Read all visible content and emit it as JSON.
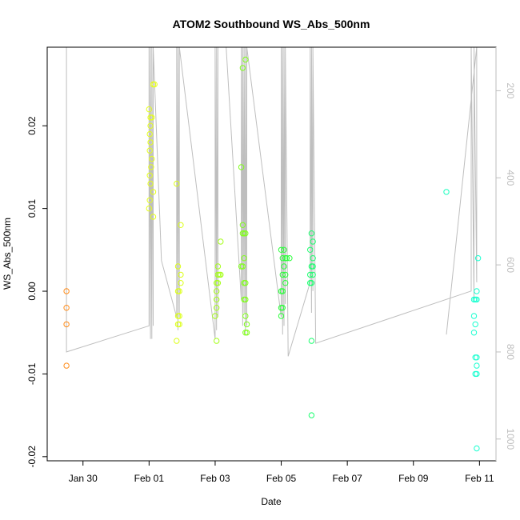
{
  "chart_data": {
    "type": "scatter",
    "title": "ATOM2 Southbound WS_Abs_500nm",
    "xlabel": "Date",
    "ylabel": "WS_Abs_500nm",
    "x_unit": "days",
    "xlim": [
      "2018-01-28T22:00",
      "2018-02-11T12:00"
    ],
    "ylim": [
      -0.0205,
      0.0295
    ],
    "x_ticks": [
      {
        "label": "Jan 30",
        "value": "2018-01-30"
      },
      {
        "label": "Feb 01",
        "value": "2018-02-01"
      },
      {
        "label": "Feb 03",
        "value": "2018-02-03"
      },
      {
        "label": "Feb 05",
        "value": "2018-02-05"
      },
      {
        "label": "Feb 07",
        "value": "2018-02-07"
      },
      {
        "label": "Feb 09",
        "value": "2018-02-09"
      },
      {
        "label": "Feb 11",
        "value": "2018-02-11"
      }
    ],
    "y_ticks": [
      {
        "label": "-0.02",
        "value": -0.02
      },
      {
        "label": "-0.01",
        "value": -0.01
      },
      {
        "label": "0.00",
        "value": 0.0
      },
      {
        "label": "0.01",
        "value": 0.01
      },
      {
        "label": "0.02",
        "value": 0.02
      }
    ],
    "secondary_axis": {
      "position": "right",
      "color": "#bebebe",
      "reversed": true,
      "range": [
        100,
        1050
      ],
      "ticks": [
        {
          "label": "200",
          "value": 200
        },
        {
          "label": "400",
          "value": 400
        },
        {
          "label": "600",
          "value": 600
        },
        {
          "label": "800",
          "value": 800
        },
        {
          "label": "1000",
          "value": 1000
        }
      ]
    },
    "grid": false,
    "points": [
      {
        "x": "2018-01-29T12:00",
        "y": 0.0,
        "color": "#ff8c1a"
      },
      {
        "x": "2018-01-29T12:00",
        "y": -0.002,
        "color": "#ff8c1a"
      },
      {
        "x": "2018-01-29T12:00",
        "y": -0.004,
        "color": "#ff8c1a"
      },
      {
        "x": "2018-01-29T12:00",
        "y": -0.009,
        "color": "#ff8c1a"
      },
      {
        "x": "2018-02-01T00:00",
        "y": 0.022,
        "color": "#e6ff1a"
      },
      {
        "x": "2018-02-01T01:00",
        "y": 0.021,
        "color": "#e6ff1a"
      },
      {
        "x": "2018-02-01T02:00",
        "y": 0.021,
        "color": "#e6ff1a"
      },
      {
        "x": "2018-02-01T01:00",
        "y": 0.02,
        "color": "#e6ff1a"
      },
      {
        "x": "2018-02-01T00:30",
        "y": 0.019,
        "color": "#e6ff1a"
      },
      {
        "x": "2018-02-01T01:00",
        "y": 0.018,
        "color": "#e6ff1a"
      },
      {
        "x": "2018-02-01T00:30",
        "y": 0.017,
        "color": "#e6ff1a"
      },
      {
        "x": "2018-02-01T02:00",
        "y": 0.016,
        "color": "#e6ff1a"
      },
      {
        "x": "2018-02-01T01:30",
        "y": 0.015,
        "color": "#e6ff1a"
      },
      {
        "x": "2018-02-01T00:30",
        "y": 0.014,
        "color": "#e6ff1a"
      },
      {
        "x": "2018-02-01T01:00",
        "y": 0.013,
        "color": "#e6ff1a"
      },
      {
        "x": "2018-02-01T03:00",
        "y": 0.012,
        "color": "#e6ff1a"
      },
      {
        "x": "2018-02-01T00:30",
        "y": 0.011,
        "color": "#e6ff1a"
      },
      {
        "x": "2018-02-01T00:00",
        "y": 0.01,
        "color": "#e6ff1a"
      },
      {
        "x": "2018-02-01T03:00",
        "y": 0.009,
        "color": "#e6ff1a"
      },
      {
        "x": "2018-02-01T03:00",
        "y": 0.025,
        "color": "#e6ff1a"
      },
      {
        "x": "2018-02-01T04:00",
        "y": 0.025,
        "color": "#e6ff1a"
      },
      {
        "x": "2018-02-01T20:00",
        "y": 0.013,
        "color": "#dcff1a"
      },
      {
        "x": "2018-02-01T23:00",
        "y": 0.008,
        "color": "#dcff1a"
      },
      {
        "x": "2018-02-01T21:00",
        "y": 0.003,
        "color": "#dcff1a"
      },
      {
        "x": "2018-02-01T23:00",
        "y": 0.002,
        "color": "#dcff1a"
      },
      {
        "x": "2018-02-01T23:00",
        "y": 0.001,
        "color": "#dcff1a"
      },
      {
        "x": "2018-02-01T21:00",
        "y": 0.0,
        "color": "#dcff1a"
      },
      {
        "x": "2018-02-01T22:00",
        "y": 0.0,
        "color": "#dcff1a"
      },
      {
        "x": "2018-02-01T21:00",
        "y": -0.003,
        "color": "#dcff1a"
      },
      {
        "x": "2018-02-01T22:00",
        "y": -0.003,
        "color": "#dcff1a"
      },
      {
        "x": "2018-02-01T21:00",
        "y": -0.004,
        "color": "#dcff1a"
      },
      {
        "x": "2018-02-01T22:00",
        "y": -0.004,
        "color": "#dcff1a"
      },
      {
        "x": "2018-02-01T20:00",
        "y": -0.006,
        "color": "#dcff1a"
      },
      {
        "x": "2018-02-03T04:00",
        "y": 0.006,
        "color": "#a6ff1a"
      },
      {
        "x": "2018-02-03T02:00",
        "y": 0.003,
        "color": "#a6ff1a"
      },
      {
        "x": "2018-02-03T02:00",
        "y": 0.002,
        "color": "#a6ff1a"
      },
      {
        "x": "2018-02-03T03:00",
        "y": 0.002,
        "color": "#a6ff1a"
      },
      {
        "x": "2018-02-03T04:00",
        "y": 0.002,
        "color": "#a6ff1a"
      },
      {
        "x": "2018-02-03T01:00",
        "y": 0.001,
        "color": "#a6ff1a"
      },
      {
        "x": "2018-02-03T02:00",
        "y": 0.001,
        "color": "#a6ff1a"
      },
      {
        "x": "2018-02-03T01:00",
        "y": 0.0,
        "color": "#a6ff1a"
      },
      {
        "x": "2018-02-03T01:00",
        "y": -0.001,
        "color": "#a6ff1a"
      },
      {
        "x": "2018-02-03T01:00",
        "y": -0.002,
        "color": "#a6ff1a"
      },
      {
        "x": "2018-02-03T00:00",
        "y": -0.003,
        "color": "#a6ff1a"
      },
      {
        "x": "2018-02-03T01:00",
        "y": -0.006,
        "color": "#a6ff1a"
      },
      {
        "x": "2018-02-03T20:00",
        "y": 0.027,
        "color": "#80ff1a"
      },
      {
        "x": "2018-02-03T22:00",
        "y": 0.028,
        "color": "#80ff1a"
      },
      {
        "x": "2018-02-03T19:00",
        "y": 0.015,
        "color": "#80ff1a"
      },
      {
        "x": "2018-02-03T20:00",
        "y": 0.008,
        "color": "#80ff1a"
      },
      {
        "x": "2018-02-03T20:00",
        "y": 0.007,
        "color": "#80ff1a"
      },
      {
        "x": "2018-02-03T21:00",
        "y": 0.007,
        "color": "#80ff1a"
      },
      {
        "x": "2018-02-03T22:00",
        "y": 0.007,
        "color": "#80ff1a"
      },
      {
        "x": "2018-02-03T21:00",
        "y": 0.004,
        "color": "#80ff1a"
      },
      {
        "x": "2018-02-03T19:00",
        "y": 0.003,
        "color": "#80ff1a"
      },
      {
        "x": "2018-02-03T20:00",
        "y": 0.003,
        "color": "#80ff1a"
      },
      {
        "x": "2018-02-03T21:00",
        "y": 0.001,
        "color": "#80ff1a"
      },
      {
        "x": "2018-02-03T22:00",
        "y": 0.001,
        "color": "#80ff1a"
      },
      {
        "x": "2018-02-03T21:00",
        "y": -0.001,
        "color": "#80ff1a"
      },
      {
        "x": "2018-02-03T22:00",
        "y": -0.001,
        "color": "#80ff1a"
      },
      {
        "x": "2018-02-03T22:00",
        "y": -0.003,
        "color": "#80ff1a"
      },
      {
        "x": "2018-02-03T23:00",
        "y": -0.004,
        "color": "#80ff1a"
      },
      {
        "x": "2018-02-03T22:00",
        "y": -0.005,
        "color": "#80ff1a"
      },
      {
        "x": "2018-02-03T23:00",
        "y": -0.005,
        "color": "#80ff1a"
      },
      {
        "x": "2018-02-05T00:00",
        "y": 0.005,
        "color": "#2aff3a"
      },
      {
        "x": "2018-02-05T02:00",
        "y": 0.005,
        "color": "#2aff3a"
      },
      {
        "x": "2018-02-05T01:00",
        "y": 0.004,
        "color": "#2aff3a"
      },
      {
        "x": "2018-02-05T03:00",
        "y": 0.004,
        "color": "#2aff3a"
      },
      {
        "x": "2018-02-05T04:00",
        "y": 0.004,
        "color": "#2aff3a"
      },
      {
        "x": "2018-02-05T06:00",
        "y": 0.004,
        "color": "#2aff3a"
      },
      {
        "x": "2018-02-05T02:00",
        "y": 0.003,
        "color": "#2aff3a"
      },
      {
        "x": "2018-02-05T01:00",
        "y": 0.002,
        "color": "#2aff3a"
      },
      {
        "x": "2018-02-05T03:00",
        "y": 0.002,
        "color": "#2aff3a"
      },
      {
        "x": "2018-02-05T03:00",
        "y": 0.001,
        "color": "#2aff3a"
      },
      {
        "x": "2018-02-05T00:00",
        "y": 0.0,
        "color": "#2aff3a"
      },
      {
        "x": "2018-02-05T01:00",
        "y": 0.0,
        "color": "#2aff3a"
      },
      {
        "x": "2018-02-05T00:00",
        "y": -0.002,
        "color": "#2aff3a"
      },
      {
        "x": "2018-02-05T01:00",
        "y": -0.002,
        "color": "#2aff3a"
      },
      {
        "x": "2018-02-05T00:00",
        "y": -0.003,
        "color": "#2aff3a"
      },
      {
        "x": "2018-02-05T22:00",
        "y": 0.007,
        "color": "#1aff6e"
      },
      {
        "x": "2018-02-05T23:00",
        "y": 0.006,
        "color": "#1aff6e"
      },
      {
        "x": "2018-02-05T21:00",
        "y": 0.005,
        "color": "#1aff6e"
      },
      {
        "x": "2018-02-05T23:00",
        "y": 0.004,
        "color": "#1aff6e"
      },
      {
        "x": "2018-02-05T22:00",
        "y": 0.003,
        "color": "#1aff6e"
      },
      {
        "x": "2018-02-05T23:00",
        "y": 0.003,
        "color": "#1aff6e"
      },
      {
        "x": "2018-02-05T21:00",
        "y": 0.002,
        "color": "#1aff6e"
      },
      {
        "x": "2018-02-05T23:00",
        "y": 0.002,
        "color": "#1aff6e"
      },
      {
        "x": "2018-02-05T21:00",
        "y": 0.001,
        "color": "#1aff6e"
      },
      {
        "x": "2018-02-05T22:00",
        "y": 0.001,
        "color": "#1aff6e"
      },
      {
        "x": "2018-02-05T22:00",
        "y": -0.006,
        "color": "#1aff6e"
      },
      {
        "x": "2018-02-05T22:00",
        "y": -0.015,
        "color": "#1aff6e"
      },
      {
        "x": "2018-02-10T00:00",
        "y": 0.012,
        "color": "#1affbf"
      },
      {
        "x": "2018-02-10T20:00",
        "y": -0.001,
        "color": "#1affd0"
      },
      {
        "x": "2018-02-10T21:00",
        "y": -0.001,
        "color": "#1affd0"
      },
      {
        "x": "2018-02-10T22:00",
        "y": 0.0,
        "color": "#1affd0"
      },
      {
        "x": "2018-02-10T23:00",
        "y": 0.004,
        "color": "#1affd0"
      },
      {
        "x": "2018-02-10T22:00",
        "y": -0.001,
        "color": "#1affd0"
      },
      {
        "x": "2018-02-10T20:00",
        "y": -0.003,
        "color": "#1affd0"
      },
      {
        "x": "2018-02-10T21:00",
        "y": -0.004,
        "color": "#1affd0"
      },
      {
        "x": "2018-02-10T20:00",
        "y": -0.005,
        "color": "#1affd0"
      },
      {
        "x": "2018-02-10T21:00",
        "y": -0.008,
        "color": "#1affd0"
      },
      {
        "x": "2018-02-10T22:00",
        "y": -0.008,
        "color": "#1affd0"
      },
      {
        "x": "2018-02-10T22:00",
        "y": -0.009,
        "color": "#1affd0"
      },
      {
        "x": "2018-02-10T21:00",
        "y": -0.01,
        "color": "#1affd0"
      },
      {
        "x": "2018-02-10T22:00",
        "y": -0.01,
        "color": "#1affd0"
      },
      {
        "x": "2018-02-10T22:00",
        "y": -0.019,
        "color": "#1affd0"
      }
    ],
    "secondary_series": {
      "name": "",
      "color": "#bebebe",
      "x": [
        "2018-01-29T12:00",
        "2018-01-29T12:00",
        "2018-01-29T12:00",
        "2018-02-01T00:00",
        "2018-02-01T00:00",
        "2018-02-01T01:00",
        "2018-02-01T01:00",
        "2018-02-01T02:00",
        "2018-02-01T02:00",
        "2018-02-01T03:00",
        "2018-02-01T03:00",
        "2018-02-01T09:00",
        "2018-02-01T20:00",
        "2018-02-01T20:00",
        "2018-02-01T21:00",
        "2018-02-01T21:00",
        "2018-02-01T22:00",
        "2018-02-01T22:00",
        "2018-02-03T00:00",
        "2018-02-03T00:00",
        "2018-02-03T01:00",
        "2018-02-03T01:00",
        "2018-02-03T02:00",
        "2018-02-03T02:00",
        "2018-02-03T08:00",
        "2018-02-03T19:00",
        "2018-02-03T19:00",
        "2018-02-03T20:00",
        "2018-02-03T20:00",
        "2018-02-03T21:00",
        "2018-02-03T21:00",
        "2018-02-03T22:00",
        "2018-02-03T22:00",
        "2018-02-03T23:00",
        "2018-02-03T23:00",
        "2018-02-05T00:00",
        "2018-02-05T00:00",
        "2018-02-05T01:00",
        "2018-02-05T01:00",
        "2018-02-05T02:00",
        "2018-02-05T02:00",
        "2018-02-05T03:00",
        "2018-02-05T03:00",
        "2018-02-05T05:00",
        "2018-02-05T21:00",
        "2018-02-05T21:00",
        "2018-02-05T22:00",
        "2018-02-05T22:00",
        "2018-02-05T23:00",
        "2018-02-05T23:00",
        "2018-02-06T01:00",
        "2018-02-10T18:00",
        "2018-02-10T18:00",
        "2018-02-10T20:00",
        "2018-02-10T20:00",
        "2018-02-10T22:00",
        "2018-02-10T22:00",
        "2018-02-10T00:00"
      ],
      "y": [
        100,
        100,
        800,
        740,
        100,
        770,
        100,
        770,
        100,
        740,
        100,
        590,
        720,
        100,
        750,
        100,
        720,
        100,
        770,
        100,
        750,
        100,
        720,
        100,
        100,
        680,
        100,
        740,
        100,
        710,
        100,
        760,
        100,
        740,
        100,
        720,
        100,
        760,
        100,
        740,
        100,
        690,
        100,
        810,
        640,
        100,
        710,
        100,
        660,
        100,
        780,
        660,
        100,
        680,
        100,
        640,
        100,
        760
      ]
    }
  }
}
